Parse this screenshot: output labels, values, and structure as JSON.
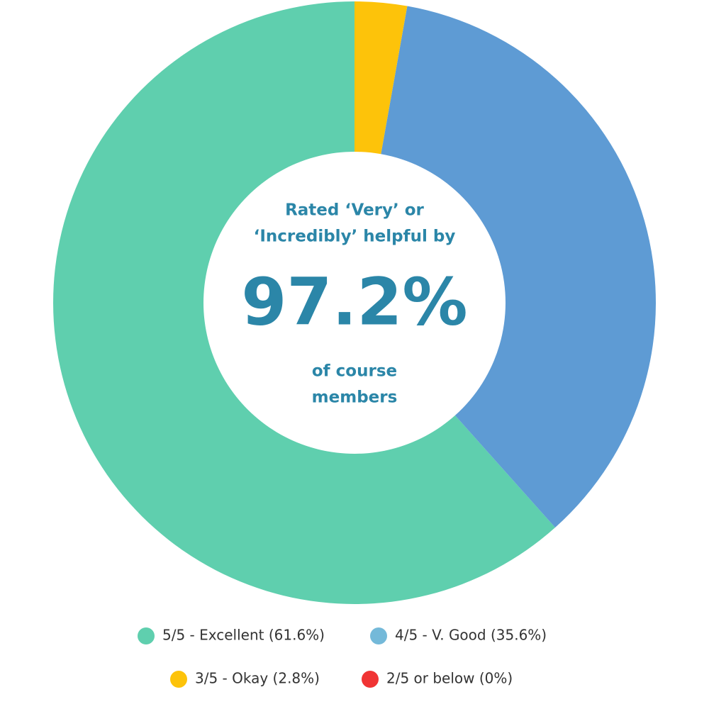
{
  "chart_data": {
    "type": "donut",
    "categories": [
      "5/5 - Excellent (61.6%)",
      "4/5 - V. Good (35.6%)",
      "3/5 - Okay (2.8%)",
      "2/5 or below (0%)"
    ],
    "values": [
      61.6,
      35.6,
      2.8,
      0
    ],
    "colors": [
      "#5fcfae",
      "#5e9bd4",
      "#fdc30a",
      "#f03434"
    ],
    "legend_colors": [
      "#5fcfae",
      "#74b9d9",
      "#fdc30a",
      "#f03434"
    ],
    "center_text": {
      "top": [
        "Rated ‘Very’ or",
        "‘Incredibly’ helpful by"
      ],
      "value": "97.2%",
      "bottom": [
        "of course",
        "members"
      ]
    }
  }
}
